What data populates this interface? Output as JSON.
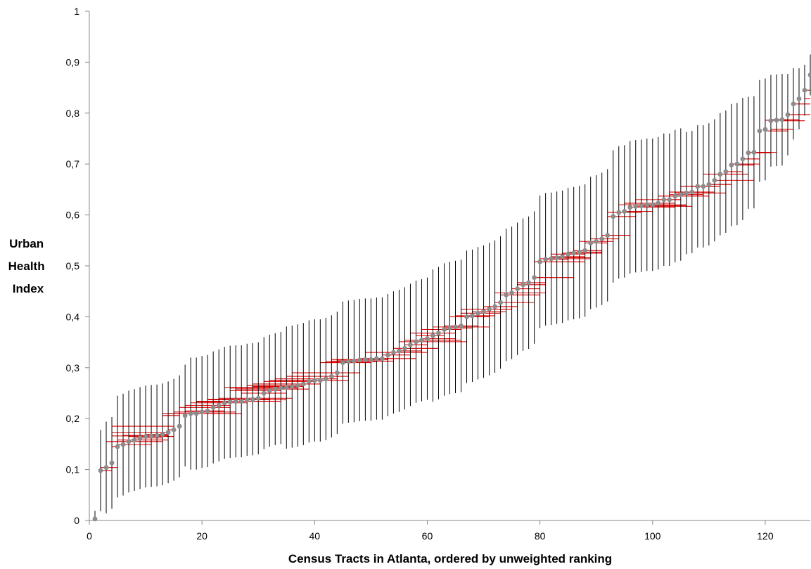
{
  "chart_data": {
    "type": "scatter",
    "title": "",
    "xlabel": "Census Tracts in Atlanta, ordered by unweighted ranking",
    "ylabel": [
      "Urban",
      "Health",
      "Index"
    ],
    "xlim": [
      0,
      128
    ],
    "ylim": [
      0,
      1
    ],
    "x_ticks": [
      0,
      20,
      40,
      60,
      80,
      100,
      120
    ],
    "y_ticks": [
      0,
      0.1,
      0.2,
      0.3,
      0.4,
      0.5,
      0.6,
      0.7,
      0.8,
      0.9,
      1
    ],
    "x_tick_labels": [
      "0",
      "20",
      "40",
      "60",
      "80",
      "100",
      "120"
    ],
    "y_tick_labels": [
      "0",
      "0,1",
      "0,2",
      "0,3",
      "0,4",
      "0,5",
      "0,6",
      "0,7",
      "0,8",
      "0,9",
      "1"
    ],
    "grid": false,
    "legend": "none",
    "colors": {
      "point": "#8c8c8c",
      "vertical_error": "#000000",
      "horizontal_error": "#e00000",
      "axis": "#888888"
    },
    "series": [
      {
        "x": [
          1,
          2,
          3,
          4,
          5,
          6,
          7,
          8,
          9,
          10,
          11,
          12,
          13,
          14,
          15,
          16,
          17,
          18,
          19,
          20,
          21,
          22,
          23,
          24,
          25,
          26,
          27,
          28,
          29,
          30,
          31,
          32,
          33,
          34,
          35,
          36,
          37,
          38,
          39,
          40,
          41,
          42,
          43,
          44,
          45,
          46,
          47,
          48,
          49,
          50,
          51,
          52,
          53,
          54,
          55,
          56,
          57,
          58,
          59,
          60,
          61,
          62,
          63,
          64,
          65,
          66,
          67,
          68,
          69,
          70,
          71,
          72,
          73,
          74,
          75,
          76,
          77,
          78,
          79,
          80,
          81,
          82,
          83,
          84,
          85,
          86,
          87,
          88,
          89,
          90,
          91,
          92,
          93,
          94,
          95,
          96,
          97,
          98,
          99,
          100,
          101,
          102,
          103,
          104,
          105,
          106,
          107,
          108,
          109,
          110,
          111,
          112,
          113,
          114,
          115,
          116,
          117,
          118,
          119,
          120,
          121,
          122,
          123,
          124,
          125,
          126,
          127,
          128
        ],
        "y": [
          0.003,
          0.098,
          0.104,
          0.113,
          0.145,
          0.149,
          0.155,
          0.158,
          0.162,
          0.165,
          0.166,
          0.167,
          0.169,
          0.173,
          0.178,
          0.185,
          0.206,
          0.21,
          0.21,
          0.213,
          0.215,
          0.222,
          0.226,
          0.231,
          0.233,
          0.234,
          0.234,
          0.237,
          0.238,
          0.24,
          0.25,
          0.255,
          0.258,
          0.26,
          0.261,
          0.263,
          0.265,
          0.268,
          0.273,
          0.275,
          0.275,
          0.278,
          0.283,
          0.29,
          0.31,
          0.312,
          0.313,
          0.315,
          0.316,
          0.316,
          0.318,
          0.318,
          0.325,
          0.33,
          0.333,
          0.338,
          0.345,
          0.351,
          0.354,
          0.357,
          0.363,
          0.368,
          0.375,
          0.378,
          0.38,
          0.382,
          0.4,
          0.402,
          0.407,
          0.41,
          0.415,
          0.42,
          0.428,
          0.443,
          0.447,
          0.455,
          0.463,
          0.467,
          0.477,
          0.508,
          0.513,
          0.514,
          0.516,
          0.518,
          0.523,
          0.525,
          0.527,
          0.53,
          0.545,
          0.548,
          0.553,
          0.56,
          0.597,
          0.605,
          0.607,
          0.615,
          0.617,
          0.618,
          0.62,
          0.62,
          0.623,
          0.63,
          0.63,
          0.637,
          0.64,
          0.643,
          0.645,
          0.656,
          0.656,
          0.66,
          0.668,
          0.68,
          0.685,
          0.698,
          0.7,
          0.71,
          0.722,
          0.723,
          0.765,
          0.768,
          0.785,
          0.786,
          0.787,
          0.797,
          0.818,
          0.828,
          0.845,
          0.875
        ],
        "y_error": [
          0.016,
          0.08,
          0.09,
          0.09,
          0.1,
          0.1,
          0.1,
          0.1,
          0.1,
          0.1,
          0.1,
          0.1,
          0.1,
          0.1,
          0.1,
          0.1,
          0.1,
          0.11,
          0.11,
          0.11,
          0.11,
          0.11,
          0.11,
          0.11,
          0.11,
          0.11,
          0.11,
          0.11,
          0.11,
          0.11,
          0.11,
          0.11,
          0.11,
          0.11,
          0.12,
          0.12,
          0.12,
          0.12,
          0.12,
          0.12,
          0.12,
          0.12,
          0.12,
          0.12,
          0.12,
          0.12,
          0.12,
          0.12,
          0.12,
          0.12,
          0.12,
          0.12,
          0.12,
          0.12,
          0.12,
          0.12,
          0.12,
          0.12,
          0.12,
          0.12,
          0.13,
          0.13,
          0.13,
          0.13,
          0.13,
          0.13,
          0.13,
          0.13,
          0.13,
          0.13,
          0.13,
          0.13,
          0.13,
          0.13,
          0.13,
          0.13,
          0.13,
          0.13,
          0.13,
          0.13,
          0.13,
          0.13,
          0.13,
          0.13,
          0.13,
          0.13,
          0.13,
          0.13,
          0.13,
          0.13,
          0.13,
          0.13,
          0.13,
          0.13,
          0.13,
          0.13,
          0.13,
          0.13,
          0.13,
          0.13,
          0.13,
          0.13,
          0.13,
          0.13,
          0.13,
          0.12,
          0.12,
          0.12,
          0.12,
          0.12,
          0.12,
          0.12,
          0.12,
          0.12,
          0.12,
          0.12,
          0.11,
          0.11,
          0.1,
          0.1,
          0.09,
          0.09,
          0.09,
          0.08,
          0.07,
          0.06,
          0.05,
          0.04
        ],
        "x_error_low": [
          1,
          2,
          2,
          4,
          4,
          5,
          3,
          5,
          8,
          7,
          4,
          6,
          10,
          4,
          14,
          4,
          13,
          14,
          13,
          15,
          17,
          16,
          17,
          18,
          19,
          21,
          19,
          21,
          21,
          23,
          27,
          25,
          26,
          25,
          24,
          29,
          28,
          29,
          31,
          32,
          33,
          33,
          35,
          36,
          41,
          42,
          43,
          44,
          43,
          49,
          48,
          51,
          52,
          49,
          55,
          54,
          56,
          55,
          56,
          59,
          58,
          57,
          59,
          63,
          61,
          63,
          64,
          65,
          66,
          68,
          66,
          70,
          72,
          73,
          72,
          75,
          76,
          76,
          79,
          79,
          81,
          80,
          82,
          82,
          82,
          84,
          85,
          86,
          88,
          87,
          89,
          91,
          92,
          92,
          95,
          96,
          97,
          98,
          94,
          97,
          95,
          101,
          97,
          101,
          103,
          104,
          103,
          107,
          105,
          110,
          111,
          109,
          113,
          115,
          114,
          116,
          118,
          117,
          120,
          121,
          123,
          120,
          121,
          124,
          125,
          127,
          127,
          128
        ],
        "x_error_high": [
          1,
          4,
          5,
          4,
          5,
          11,
          13,
          14,
          13,
          15,
          14,
          14,
          14,
          14,
          15,
          15,
          16,
          24,
          27,
          26,
          24,
          25,
          25,
          28,
          25,
          30,
          34,
          35,
          32,
          36,
          35,
          34,
          39,
          37,
          37,
          38,
          38,
          41,
          40,
          42,
          46,
          44,
          46,
          48,
          50,
          51,
          54,
          52,
          51,
          53,
          54,
          58,
          57,
          60,
          59,
          62,
          60,
          67,
          66,
          65,
          63,
          65,
          66,
          68,
          71,
          69,
          71,
          72,
          73,
          74,
          75,
          76,
          79,
          80,
          81,
          80,
          81,
          81,
          86,
          88,
          85,
          89,
          89,
          88,
          88,
          91,
          91,
          91,
          92,
          93,
          94,
          96,
          97,
          98,
          100,
          104,
          107,
          106,
          106,
          102,
          104,
          105,
          105,
          110,
          109,
          113,
          111,
          111,
          112,
          114,
          118,
          117,
          116,
          118,
          119,
          119,
          121,
          122,
          124,
          125,
          127,
          124,
          126,
          128,
          128,
          128,
          128,
          128
        ]
      }
    ]
  }
}
